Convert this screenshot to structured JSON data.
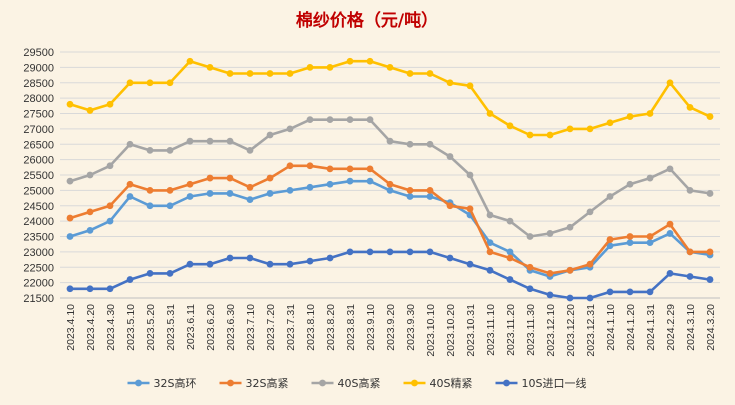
{
  "chart_data": {
    "type": "line",
    "title": "棉纱价格（元/吨）",
    "xlabel": "",
    "ylabel": "",
    "ylim": [
      21500,
      29500
    ],
    "yticks": [
      21500,
      22000,
      22500,
      23000,
      23500,
      24000,
      24500,
      25000,
      25500,
      26000,
      26500,
      27000,
      27500,
      28000,
      28500,
      29000,
      29500
    ],
    "grid": true,
    "legend_position": "bottom",
    "title_color": "#c00000",
    "background_color": "#fbf3e4",
    "x": [
      "2023.4.10",
      "2023.4.20",
      "2023.4.30",
      "2023.5.10",
      "2023.5.20",
      "2023.5.31",
      "2023.6.11",
      "2023.6.20",
      "2023.6.30",
      "2023.7.10",
      "2023.7.20",
      "2023.7.31",
      "2023.8.10",
      "2023.8.20",
      "2023.8.31",
      "2023.9.10",
      "2023.9.20",
      "2023.9.30",
      "2023.10.10",
      "2023.10.20",
      "2023.10.31",
      "2023.11.10",
      "2023.11.20",
      "2023.11.30",
      "2023.12.10",
      "2023.12.20",
      "2023.12.31",
      "2024.1.10",
      "2024.1.20",
      "2024.1.31",
      "2024.2.29",
      "2024.3.10",
      "2024.3.20"
    ],
    "series": [
      {
        "name": "32S高环",
        "color": "#5b9bd5",
        "values": [
          23500,
          23700,
          24000,
          24800,
          24500,
          24500,
          24800,
          24900,
          24900,
          24700,
          24900,
          25000,
          25100,
          25200,
          25300,
          25300,
          25000,
          24800,
          24800,
          24600,
          24200,
          23300,
          23000,
          22400,
          22200,
          22400,
          22500,
          23200,
          23300,
          23300,
          23600,
          23000,
          22900
        ]
      },
      {
        "name": "32S高紧",
        "color": "#ed7d31",
        "values": [
          24100,
          24300,
          24500,
          25200,
          25000,
          25000,
          25200,
          25400,
          25400,
          25100,
          25400,
          25800,
          25800,
          25700,
          25700,
          25700,
          25200,
          25000,
          25000,
          24500,
          24400,
          23000,
          22800,
          22500,
          22300,
          22400,
          22600,
          23400,
          23500,
          23500,
          23900,
          23000,
          23000
        ]
      },
      {
        "name": "40S高紧",
        "color": "#a5a5a5",
        "values": [
          25300,
          25500,
          25800,
          26500,
          26300,
          26300,
          26600,
          26600,
          26600,
          26300,
          26800,
          27000,
          27300,
          27300,
          27300,
          27300,
          26600,
          26500,
          26500,
          26100,
          25500,
          24200,
          24000,
          23500,
          23600,
          23800,
          24300,
          24800,
          25200,
          25400,
          25700,
          25000,
          24900
        ]
      },
      {
        "name": "40S精紧",
        "color": "#ffc000",
        "values": [
          27800,
          27600,
          27800,
          28500,
          28500,
          28500,
          29200,
          29000,
          28800,
          28800,
          28800,
          28800,
          29000,
          29000,
          29200,
          29200,
          29000,
          28800,
          28800,
          28500,
          28400,
          27500,
          27100,
          26800,
          26800,
          27000,
          27000,
          27200,
          27400,
          27500,
          28500,
          27700,
          27400
        ]
      },
      {
        "name": "10S进口一线",
        "color": "#4472c4",
        "values": [
          21800,
          21800,
          21800,
          22100,
          22300,
          22300,
          22600,
          22600,
          22800,
          22800,
          22600,
          22600,
          22700,
          22800,
          23000,
          23000,
          23000,
          23000,
          23000,
          22800,
          22600,
          22400,
          22100,
          21800,
          21600,
          21500,
          21500,
          21700,
          21700,
          21700,
          22300,
          22200,
          22100
        ]
      }
    ]
  }
}
